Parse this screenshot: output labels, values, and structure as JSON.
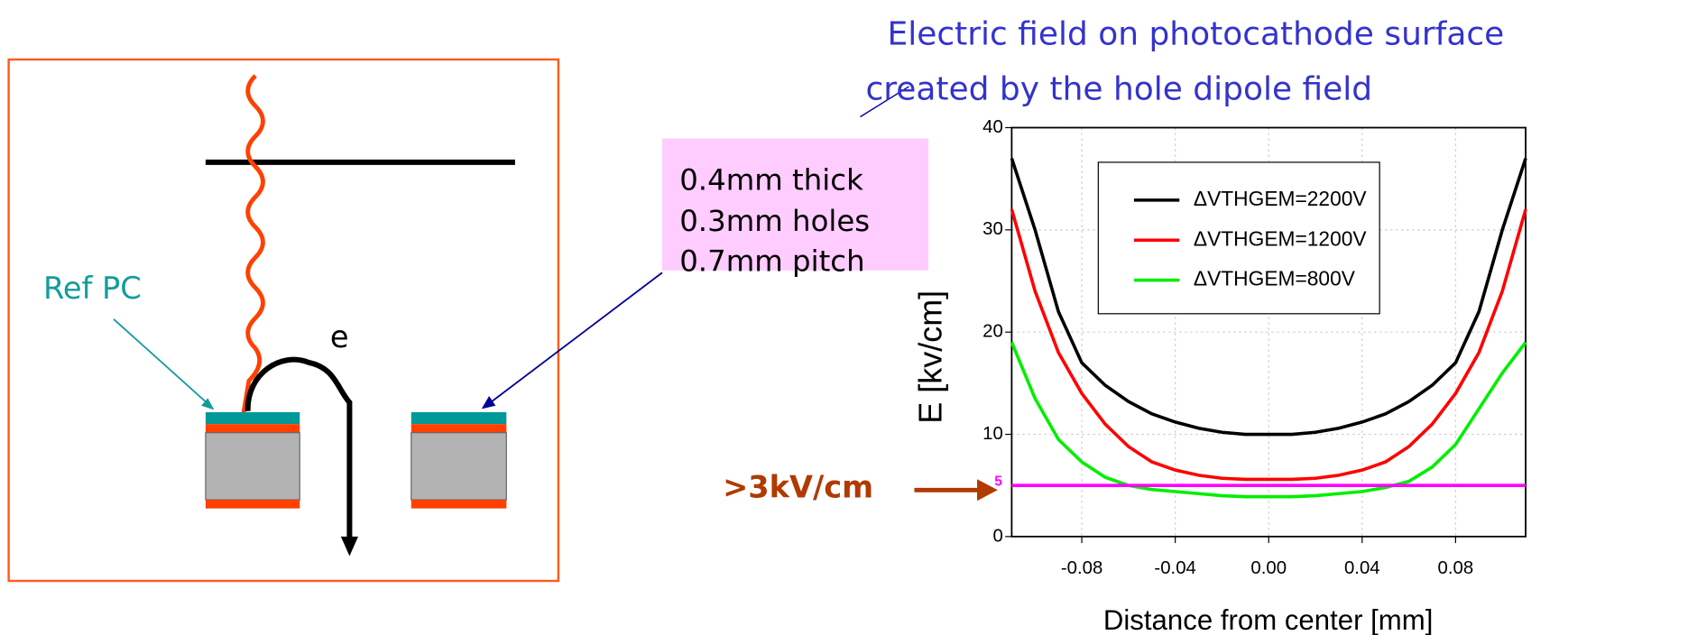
{
  "chart_data": {
    "type": "line",
    "title": [
      "Electric field on photocathode surface",
      "created by the hole dipole field"
    ],
    "x_label": "Distance from center [mm]",
    "y_label": "E  [kv/cm]",
    "x": [
      -0.11,
      -0.1,
      -0.09,
      -0.08,
      -0.07,
      -0.06,
      -0.05,
      -0.04,
      -0.03,
      -0.02,
      -0.01,
      0,
      0.01,
      0.02,
      0.03,
      0.04,
      0.05,
      0.06,
      0.07,
      0.08,
      0.09,
      0.1,
      0.11
    ],
    "series": [
      {
        "name": "ΔVTHGEM=2200V",
        "color": "#000000",
        "values": [
          37,
          30,
          22,
          17,
          14.8,
          13.2,
          12,
          11.2,
          10.6,
          10.2,
          10,
          10,
          10,
          10.2,
          10.6,
          11.2,
          12,
          13.2,
          14.8,
          17,
          22,
          30,
          37
        ]
      },
      {
        "name": "ΔVTHGEM=1200V",
        "color": "#ff0000",
        "values": [
          32,
          24,
          18,
          14,
          11,
          8.8,
          7.3,
          6.5,
          6,
          5.7,
          5.6,
          5.6,
          5.6,
          5.7,
          6,
          6.5,
          7.3,
          8.8,
          11,
          14,
          18,
          24,
          32
        ]
      },
      {
        "name": "ΔVTHGEM=800V",
        "color": "#00ee00",
        "values": [
          19,
          13.5,
          9.5,
          7.3,
          5.8,
          5,
          4.6,
          4.4,
          4.2,
          4,
          3.9,
          3.9,
          3.9,
          4,
          4.2,
          4.4,
          4.8,
          5.4,
          6.8,
          9,
          12.5,
          16,
          19
        ]
      }
    ],
    "reference_line": {
      "value": 5,
      "color": "#ff00ff"
    },
    "threshold_annotation": ">3kV/cm",
    "xlim": [
      -0.11,
      0.11
    ],
    "xticks": [
      -0.08,
      -0.04,
      {
        "value": 0,
        "label": "0.00"
      },
      0.04,
      0.08
    ],
    "ylim": [
      0,
      40
    ],
    "yticks": [
      0,
      10,
      20,
      30,
      40
    ],
    "grid": true,
    "legend": "upper center"
  },
  "diagram": {
    "ref_label": "Ref PC",
    "electron_label": "e",
    "geometry_box": [
      "0.4mm thick",
      "0.3mm holes",
      "0.7mm pitch"
    ]
  }
}
